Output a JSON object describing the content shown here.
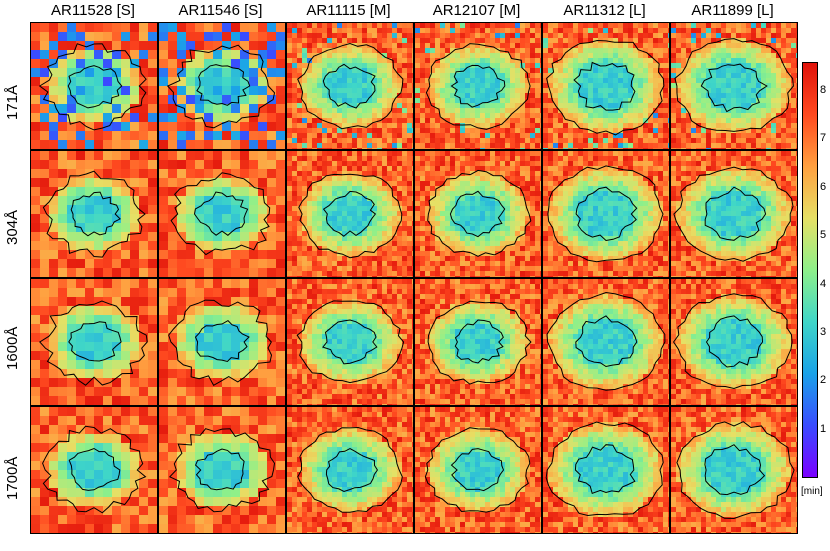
{
  "columns": [
    {
      "label": "AR11528 [S]"
    },
    {
      "label": "AR11546 [S]"
    },
    {
      "label": "AR11115 [M]"
    },
    {
      "label": "AR12107 [M]"
    },
    {
      "label": "AR11312 [L]"
    },
    {
      "label": "AR11899 [L]"
    }
  ],
  "rows": [
    {
      "label": "171Å"
    },
    {
      "label": "304Å"
    },
    {
      "label": "1600Å"
    },
    {
      "label": "1700Å"
    }
  ],
  "colorbar": {
    "ticks": [
      "8",
      "7",
      "6",
      "5",
      "4",
      "3",
      "2",
      "1"
    ],
    "tick_values": [
      8,
      7,
      6,
      5,
      4,
      3,
      2,
      1
    ],
    "range": [
      0,
      8.6
    ],
    "unit": "[min]",
    "colormap": "rainbow-jet",
    "colors": [
      "#7a00ff",
      "#3a4cff",
      "#1aa2e8",
      "#3fd6c8",
      "#8ef08a",
      "#e6e065",
      "#ffa040",
      "#ff4a20",
      "#e0120a"
    ]
  },
  "contour_color": "#000000"
}
